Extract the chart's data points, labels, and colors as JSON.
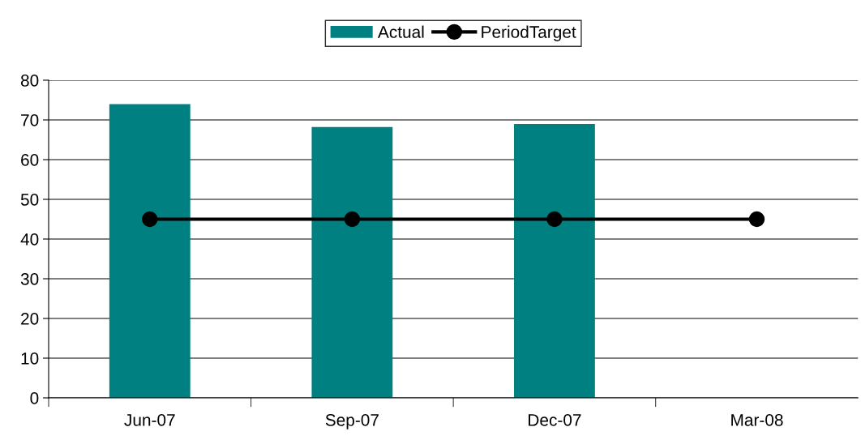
{
  "chart_data": {
    "type": "bar",
    "categories": [
      "Jun-07",
      "Sep-07",
      "Dec-07",
      "Mar-08"
    ],
    "series": [
      {
        "name": "Actual",
        "color": "#008080",
        "values": [
          74,
          68.2,
          69,
          null
        ]
      },
      {
        "name": "PeriodTarget",
        "type": "line",
        "color": "#000000",
        "values": [
          45,
          45,
          45,
          45
        ],
        "marker": "circle",
        "line_style": "solid"
      }
    ],
    "ylim": [
      0,
      80
    ],
    "yticks": [
      0,
      10,
      20,
      30,
      40,
      50,
      60,
      70,
      80
    ],
    "grid": "y",
    "legend": "top"
  }
}
